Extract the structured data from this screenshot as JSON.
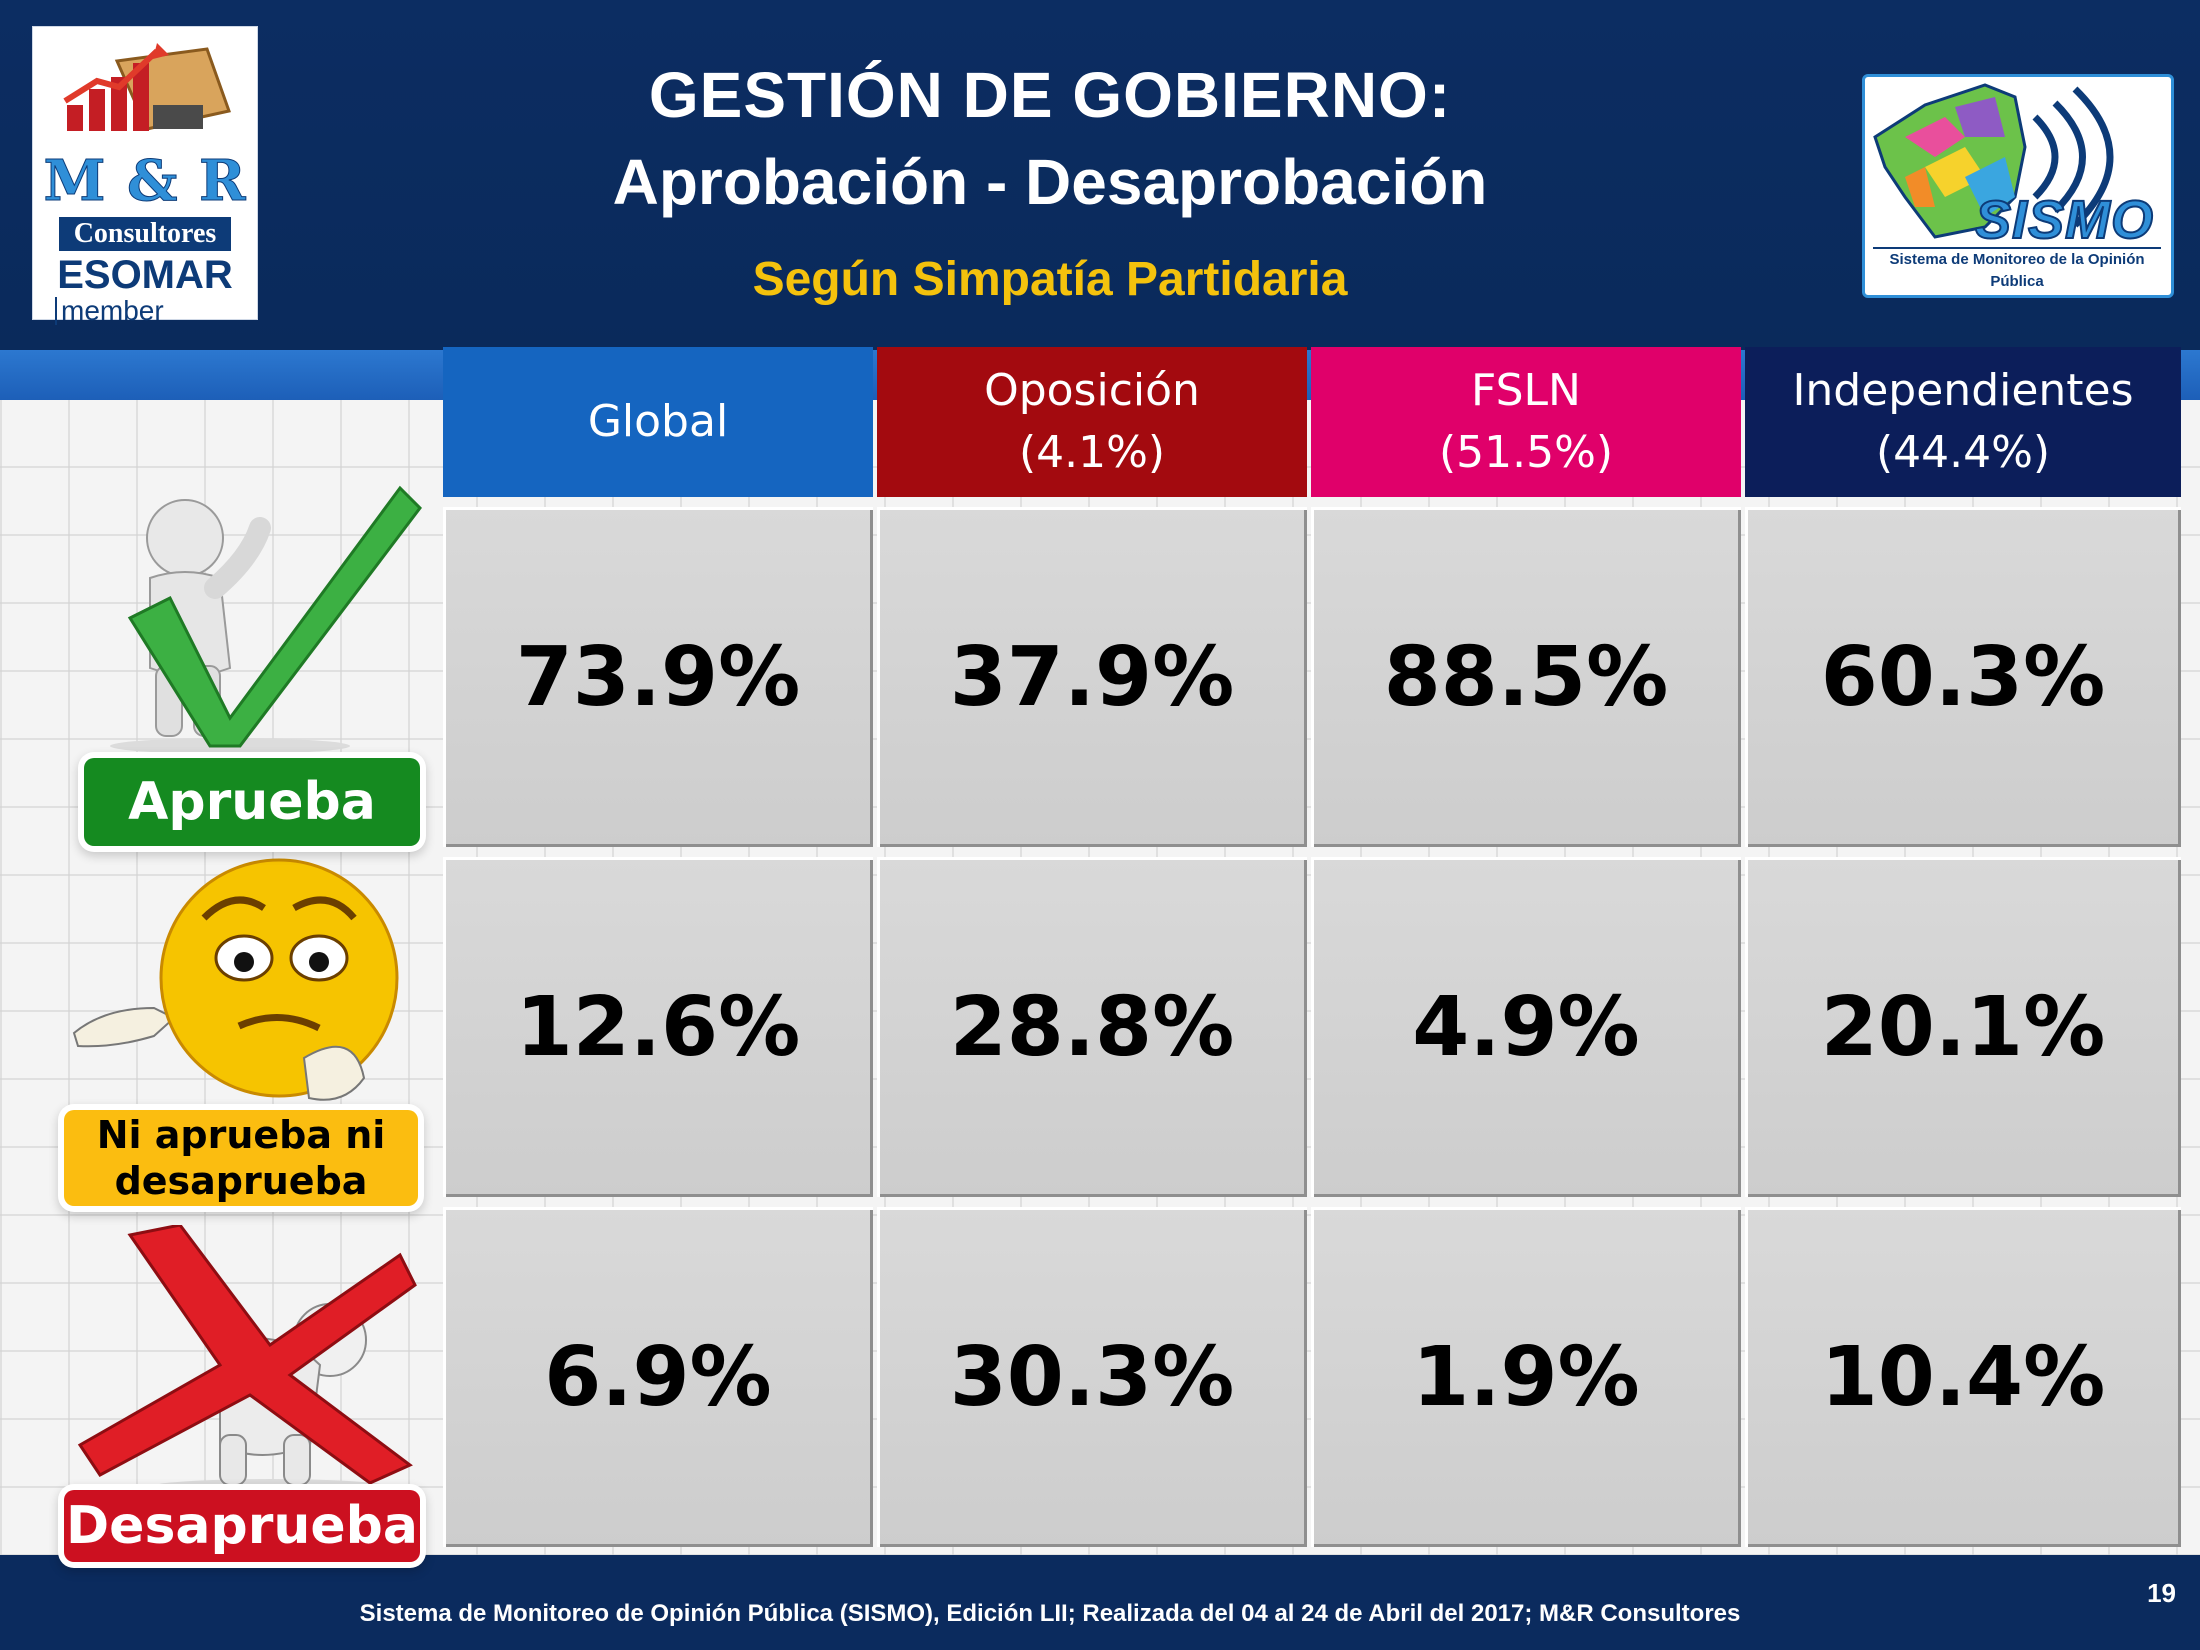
{
  "header": {
    "title_line1": "GESTIÓN DE GOBIERNO:",
    "title_line2": "Aprobación - Desaprobación",
    "subtitle": "Según Simpatía Partidaria"
  },
  "logo_left": {
    "brand": "M & R",
    "company": "Consultores",
    "association": "ESOMAR",
    "membership": "member"
  },
  "logo_right": {
    "name": "SISMO",
    "caption": "Sistema de Monitoreo de la Opinión Pública"
  },
  "table": {
    "columns": [
      {
        "name": "Global",
        "share": "",
        "color": "#1565c0"
      },
      {
        "name": "Oposición",
        "share": "(4.1%)",
        "color": "#a30a0f"
      },
      {
        "name": "FSLN",
        "share": "(51.5%)",
        "color": "#e0006a"
      },
      {
        "name": "Independientes",
        "share": "(44.4%)",
        "color": "#0c1e5a"
      }
    ],
    "rows": [
      {
        "label": "Aprueba",
        "values": [
          "73.9%",
          "37.9%",
          "88.5%",
          "60.3%"
        ]
      },
      {
        "label": "Ni aprueba ni desaprueba",
        "values": [
          "12.6%",
          "28.8%",
          "4.9%",
          "20.1%"
        ]
      },
      {
        "label": "Desaprueba",
        "values": [
          "6.9%",
          "30.3%",
          "1.9%",
          "10.4%"
        ]
      }
    ]
  },
  "colors": {
    "header_bg": "#0c2d62",
    "subtitle": "#f4c20d",
    "aprueba": "#158a20",
    "ni_aprueba": "#fbbd10",
    "desaprueba": "#cc1020"
  },
  "footer": {
    "text": "Sistema de Monitoreo de Opinión Pública (SISMO), Edición LII; Realizada del 04 al 24 de Abril del 2017; M&R Consultores",
    "page_number": "19"
  }
}
